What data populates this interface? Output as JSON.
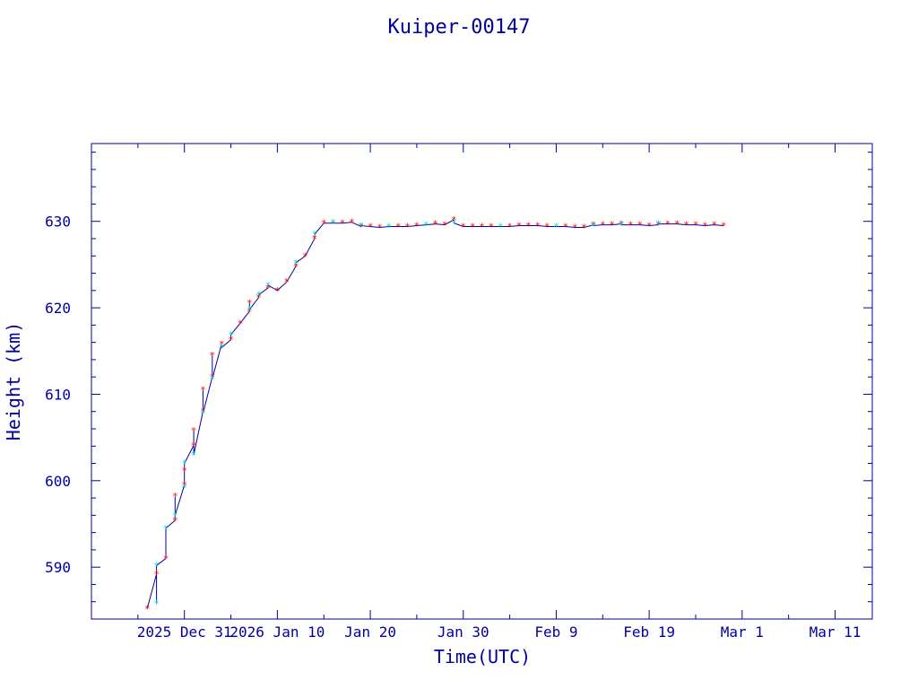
{
  "chart_data": {
    "type": "scatter",
    "title": "Kuiper-00147",
    "xlabel": "Time(UTC)",
    "ylabel": "Height (km)",
    "x_tick_labels": [
      "2025 Dec 31",
      "2026 Jan 10",
      "Jan 20",
      "Jan 30",
      "Feb  9",
      "Feb 19",
      "Mar  1",
      "Mar 11"
    ],
    "x_ticks": [
      "2025-12-31",
      "2026-01-10",
      "2026-01-20",
      "2026-01-30",
      "2026-02-09",
      "2026-02-19",
      "2026-03-01",
      "2026-03-11"
    ],
    "x_range": [
      "2025-12-21",
      "2026-03-15"
    ],
    "y_ticks": [
      590,
      600,
      610,
      620,
      630
    ],
    "ylim": [
      584,
      639
    ],
    "grid": false,
    "colors": {
      "axes": "#0000a0",
      "line": "#0000a0",
      "marker_primary": "#ff0000",
      "marker_secondary": "#00e0e0"
    },
    "series": [
      {
        "marker": "asterisk",
        "color": "#ff0000",
        "points": [
          [
            "2025-12-27",
            585.2
          ],
          [
            "2025-12-28",
            589.2
          ],
          [
            "2025-12-29",
            591.0
          ],
          [
            "2025-12-30",
            595.4
          ],
          [
            "2025-12-30",
            598.2
          ],
          [
            "2025-12-31",
            599.5
          ],
          [
            "2025-12-31",
            601.2
          ],
          [
            "2026-01-01",
            604.1
          ],
          [
            "2026-01-01",
            605.8
          ],
          [
            "2026-01-02",
            608.0
          ],
          [
            "2026-01-02",
            610.5
          ],
          [
            "2026-01-03",
            612.0
          ],
          [
            "2026-01-03",
            614.5
          ],
          [
            "2026-01-04",
            615.8
          ],
          [
            "2026-01-05",
            616.3
          ],
          [
            "2026-01-06",
            618.2
          ],
          [
            "2026-01-07",
            619.6
          ],
          [
            "2026-01-07",
            620.6
          ],
          [
            "2026-01-08",
            621.2
          ],
          [
            "2026-01-09",
            622.3
          ],
          [
            "2026-01-10",
            622.0
          ],
          [
            "2026-01-11",
            623.0
          ],
          [
            "2026-01-12",
            624.8
          ],
          [
            "2026-01-13",
            626.0
          ],
          [
            "2026-01-14",
            628.0
          ],
          [
            "2026-01-15",
            629.8
          ],
          [
            "2026-01-16",
            629.8
          ],
          [
            "2026-01-17",
            629.8
          ],
          [
            "2026-01-18",
            629.9
          ],
          [
            "2026-01-19",
            629.4
          ],
          [
            "2026-01-20",
            629.4
          ],
          [
            "2026-01-21",
            629.3
          ],
          [
            "2026-01-23",
            629.4
          ],
          [
            "2026-01-24",
            629.4
          ],
          [
            "2026-01-25",
            629.5
          ],
          [
            "2026-01-27",
            629.7
          ],
          [
            "2026-01-28",
            629.6
          ],
          [
            "2026-01-29",
            630.2
          ],
          [
            "2026-01-30",
            629.4
          ],
          [
            "2026-01-31",
            629.4
          ],
          [
            "2026-02-01",
            629.4
          ],
          [
            "2026-02-02",
            629.4
          ],
          [
            "2026-02-04",
            629.4
          ],
          [
            "2026-02-05",
            629.5
          ],
          [
            "2026-02-06",
            629.5
          ],
          [
            "2026-02-07",
            629.5
          ],
          [
            "2026-02-08",
            629.4
          ],
          [
            "2026-02-10",
            629.4
          ],
          [
            "2026-02-11",
            629.3
          ],
          [
            "2026-02-12",
            629.3
          ],
          [
            "2026-02-13",
            629.6
          ],
          [
            "2026-02-14",
            629.6
          ],
          [
            "2026-02-15",
            629.6
          ],
          [
            "2026-02-16",
            629.7
          ],
          [
            "2026-02-17",
            629.6
          ],
          [
            "2026-02-18",
            629.6
          ],
          [
            "2026-02-19",
            629.5
          ],
          [
            "2026-02-20",
            629.6
          ],
          [
            "2026-02-21",
            629.7
          ],
          [
            "2026-02-22",
            629.7
          ],
          [
            "2026-02-23",
            629.6
          ],
          [
            "2026-02-24",
            629.6
          ],
          [
            "2026-02-25",
            629.5
          ],
          [
            "2026-02-26",
            629.6
          ],
          [
            "2026-02-27",
            629.5
          ]
        ]
      },
      {
        "marker": "asterisk",
        "color": "#00e0e0",
        "points": [
          [
            "2025-12-28",
            585.8
          ],
          [
            "2025-12-28",
            590.2
          ],
          [
            "2025-12-29",
            594.5
          ],
          [
            "2025-12-30",
            596.0
          ],
          [
            "2025-12-31",
            599.2
          ],
          [
            "2025-12-31",
            602.0
          ],
          [
            "2026-01-01",
            603.0
          ],
          [
            "2026-01-02",
            607.8
          ],
          [
            "2026-01-03",
            611.8
          ],
          [
            "2026-01-04",
            615.4
          ],
          [
            "2026-01-05",
            616.9
          ],
          [
            "2026-01-07",
            619.8
          ],
          [
            "2026-01-08",
            621.5
          ],
          [
            "2026-01-09",
            622.6
          ],
          [
            "2026-01-12",
            625.2
          ],
          [
            "2026-01-14",
            628.5
          ],
          [
            "2026-01-16",
            629.8
          ],
          [
            "2026-01-19",
            629.5
          ],
          [
            "2026-01-22",
            629.4
          ],
          [
            "2026-01-26",
            629.6
          ],
          [
            "2026-01-29",
            629.8
          ],
          [
            "2026-02-03",
            629.4
          ],
          [
            "2026-02-09",
            629.4
          ],
          [
            "2026-02-13",
            629.5
          ],
          [
            "2026-02-16",
            629.6
          ],
          [
            "2026-02-20",
            629.7
          ]
        ]
      }
    ]
  }
}
